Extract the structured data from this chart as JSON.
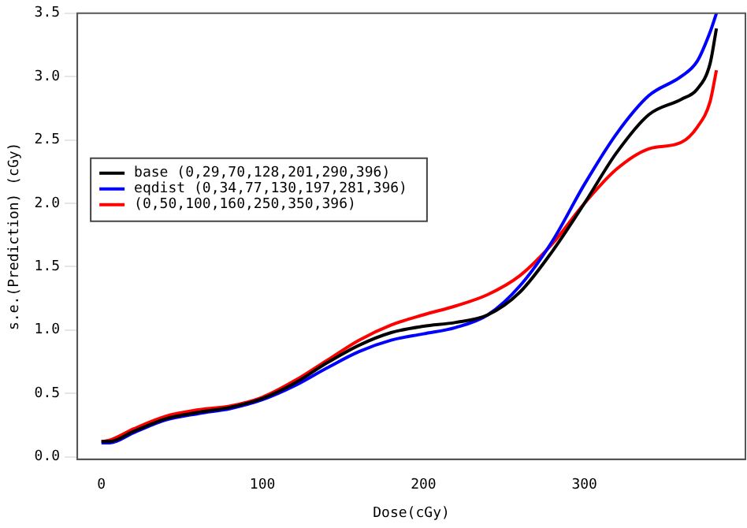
{
  "chart_data": {
    "type": "line",
    "xlabel": "Dose(cGy)",
    "ylabel": "s.e.(Prediction) (cGy)",
    "xlim": [
      -15,
      400
    ],
    "xticks": [
      0,
      100,
      200,
      300
    ],
    "ylim": [
      -0.02,
      3.5
    ],
    "yticks": [
      {
        "value": 0,
        "label": "0.0"
      },
      {
        "value": 0.5,
        "label": "0.5"
      },
      {
        "value": 1,
        "label": "1.0"
      },
      {
        "value": 1.5,
        "label": "1.5"
      },
      {
        "value": 2,
        "label": "2.0"
      },
      {
        "value": 2.5,
        "label": "2.5"
      },
      {
        "value": 3,
        "label": "3.0"
      },
      {
        "value": 3.5,
        "label": "3.5"
      }
    ],
    "x": [
      0,
      5,
      20,
      40,
      60,
      80,
      100,
      120,
      140,
      160,
      180,
      200,
      220,
      240,
      260,
      280,
      300,
      320,
      340,
      360,
      370,
      378,
      382
    ],
    "series": [
      {
        "name": "base (0,29,70,128,201,290,396)",
        "color": "#000000",
        "values": [
          0.12,
          0.12,
          0.2,
          0.3,
          0.35,
          0.39,
          0.46,
          0.58,
          0.74,
          0.88,
          0.98,
          1.03,
          1.06,
          1.12,
          1.3,
          1.62,
          2.0,
          2.4,
          2.7,
          2.82,
          2.9,
          3.1,
          3.38
        ]
      },
      {
        "name": "eqdist (0,34,77,130,197,281,396)",
        "color": "#0000ff",
        "values": [
          0.11,
          0.11,
          0.19,
          0.29,
          0.34,
          0.38,
          0.45,
          0.56,
          0.7,
          0.83,
          0.92,
          0.97,
          1.02,
          1.12,
          1.35,
          1.7,
          2.15,
          2.55,
          2.85,
          3.0,
          3.12,
          3.35,
          3.5
        ]
      },
      {
        "name": "(0,50,100,160,250,350,396)",
        "color": "#ff0000",
        "values": [
          0.12,
          0.13,
          0.22,
          0.32,
          0.37,
          0.4,
          0.47,
          0.6,
          0.76,
          0.92,
          1.04,
          1.12,
          1.19,
          1.28,
          1.43,
          1.68,
          2.0,
          2.27,
          2.43,
          2.48,
          2.6,
          2.8,
          3.05
        ]
      }
    ],
    "legend": "left",
    "grid": false
  }
}
